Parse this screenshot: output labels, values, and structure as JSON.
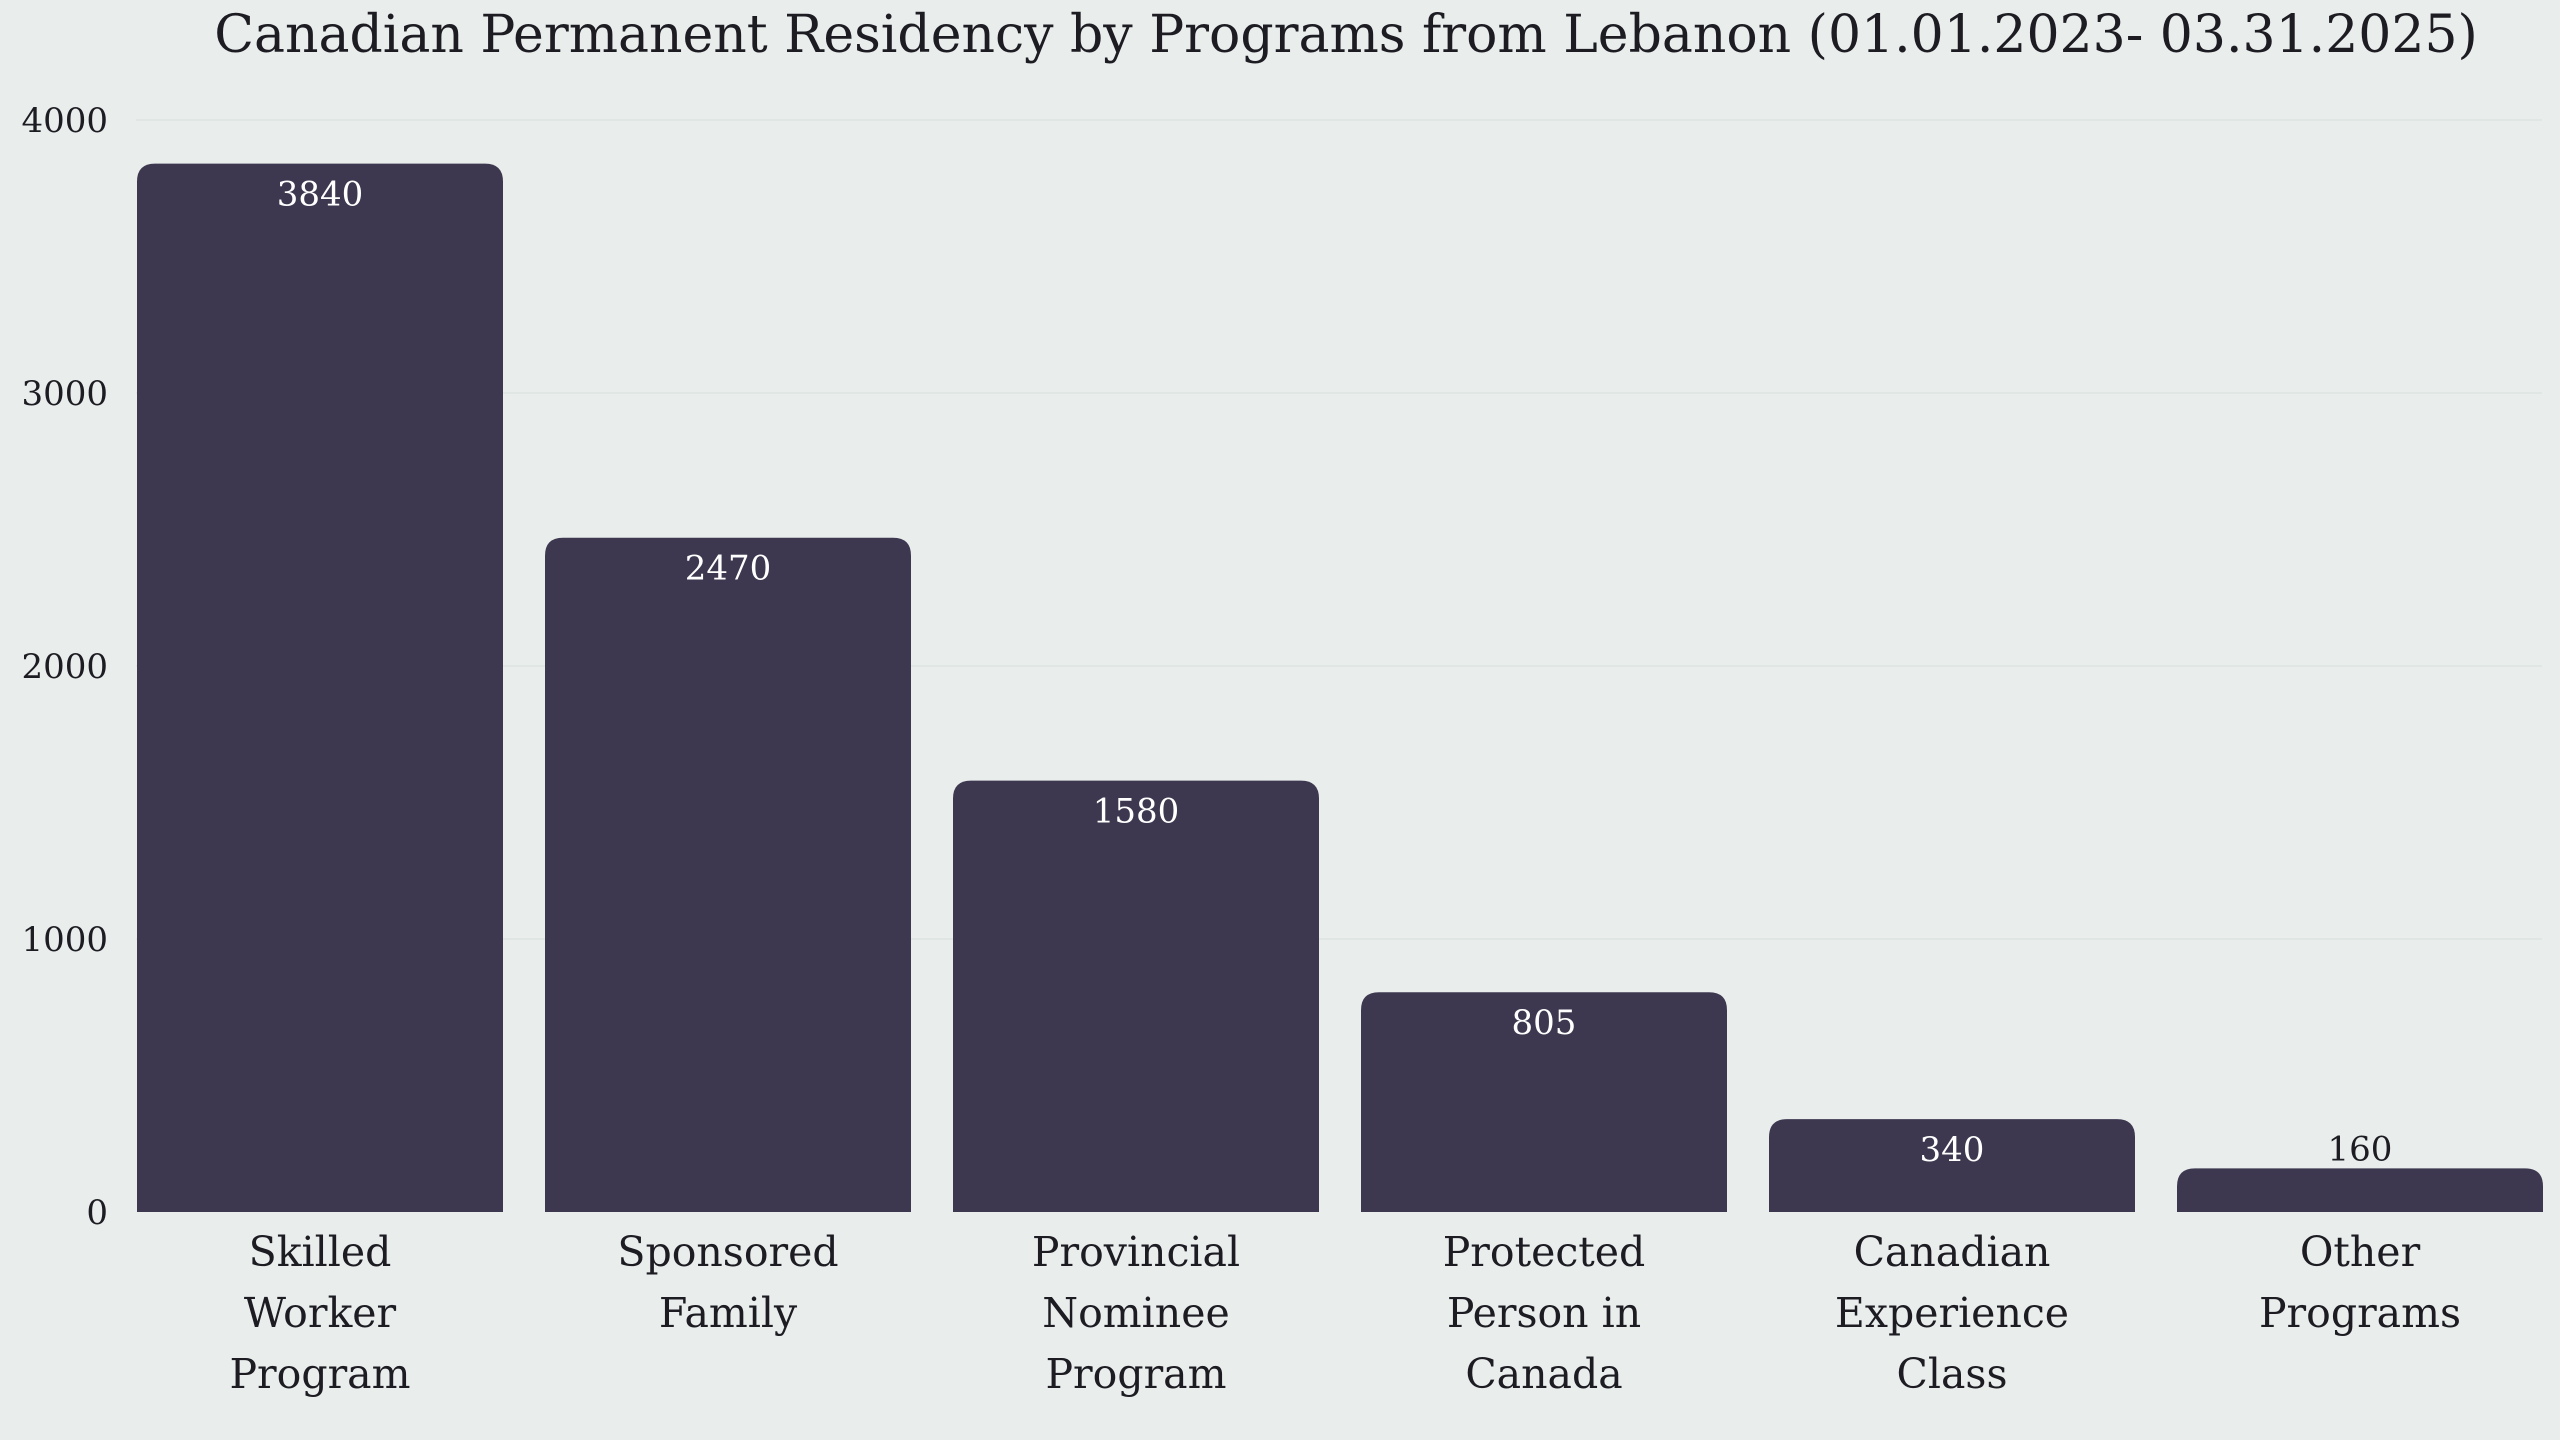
{
  "chart_data": {
    "type": "bar",
    "title": "Canadian Permanent Residency by Programs from Lebanon (01.01.2023- 03.31.2025)",
    "xlabel": "",
    "ylabel": "",
    "categories": [
      [
        "Skilled",
        "Worker",
        "Program"
      ],
      [
        "Sponsored",
        "Family"
      ],
      [
        "Provincial",
        "Nominee",
        "Program"
      ],
      [
        "Protected",
        "Person in",
        "Canada"
      ],
      [
        "Canadian",
        "Experience",
        "Class"
      ],
      [
        "Other",
        "Programs"
      ]
    ],
    "values": [
      3840,
      2470,
      1580,
      805,
      340,
      160
    ],
    "data_labels": [
      "3840",
      "2470",
      "1580",
      "805",
      "340",
      "160"
    ],
    "yticks": [
      0,
      1000,
      2000,
      3000,
      4000
    ],
    "ylim": [
      0,
      4000
    ],
    "grid": true,
    "legend": "none",
    "colors": {
      "bar": "#3d3850",
      "label_inside": "#ffffff",
      "label_outside": "#1c1c22",
      "background": "#e9edec",
      "grid": "#dde3e2"
    }
  }
}
